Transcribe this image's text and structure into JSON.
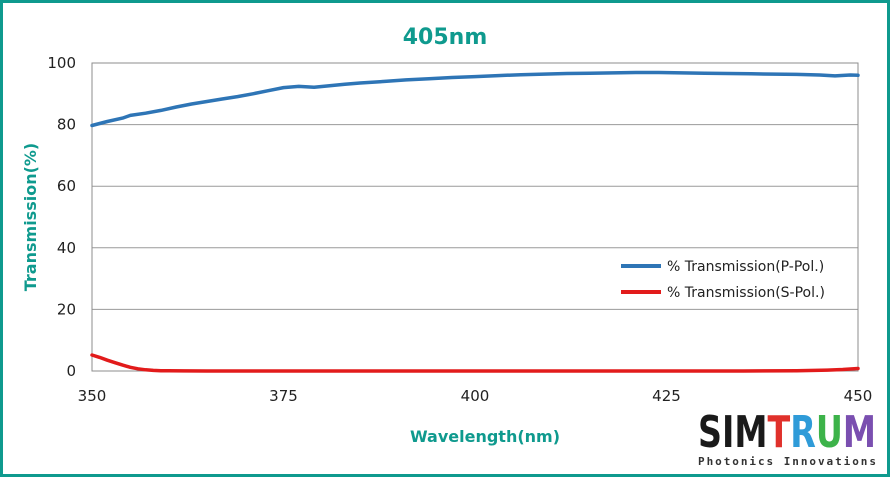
{
  "chart_data": {
    "type": "line",
    "title": "405nm",
    "xlabel": "Wavelength(nm)",
    "ylabel": "Transmission(%)",
    "xlim": [
      350,
      450
    ],
    "ylim": [
      0,
      100
    ],
    "xticks": [
      350,
      375,
      400,
      425,
      450
    ],
    "yticks": [
      0,
      20,
      40,
      60,
      80,
      100
    ],
    "grid": true,
    "legend_position": "right",
    "series": [
      {
        "name": "% Transmission(P-Pol.)",
        "color": "#2e75b6",
        "x": [
          350,
          352,
          354,
          355,
          357,
          359,
          361,
          363,
          365,
          367,
          369,
          371,
          373,
          375,
          377,
          379,
          381,
          383,
          385,
          388,
          391,
          394,
          397,
          400,
          403,
          406,
          409,
          412,
          415,
          418,
          421,
          424,
          427,
          430,
          433,
          436,
          439,
          442,
          445,
          447,
          449,
          450
        ],
        "y": [
          79.7,
          81.0,
          82.1,
          83.0,
          83.7,
          84.6,
          85.7,
          86.7,
          87.5,
          88.3,
          89.1,
          90.0,
          91.0,
          92.0,
          92.4,
          92.1,
          92.6,
          93.1,
          93.5,
          94.0,
          94.5,
          94.9,
          95.3,
          95.6,
          95.9,
          96.2,
          96.4,
          96.6,
          96.7,
          96.8,
          96.9,
          96.9,
          96.8,
          96.7,
          96.6,
          96.5,
          96.4,
          96.3,
          96.1,
          95.8,
          96.1,
          96.0
        ]
      },
      {
        "name": "% Transmission(S-Pol.)",
        "color": "#e21b1b",
        "x": [
          350,
          351,
          352,
          353,
          354,
          355,
          356,
          357,
          358,
          359,
          360,
          362,
          365,
          370,
          380,
          400,
          420,
          435,
          442,
          446,
          448,
          450
        ],
        "y": [
          5.2,
          4.4,
          3.5,
          2.7,
          1.9,
          1.2,
          0.7,
          0.4,
          0.2,
          0.1,
          0.05,
          0.02,
          0.0,
          0.0,
          0.0,
          0.0,
          0.0,
          0.0,
          0.1,
          0.3,
          0.5,
          0.8
        ]
      }
    ]
  },
  "logo": {
    "name": "SIMTRUM",
    "tagline": "Photonics Innovations"
  }
}
